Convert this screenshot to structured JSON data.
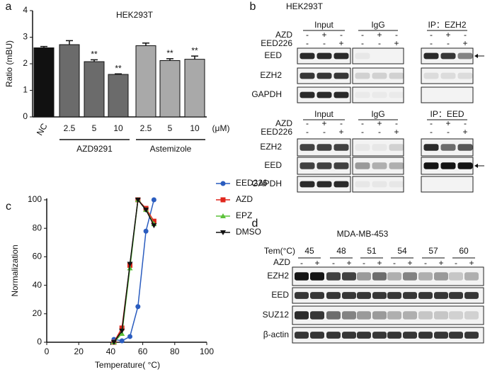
{
  "chart_data": [
    {
      "type": "bar",
      "panel_label": "a",
      "title": "HEK293T",
      "y_label": "Ratio (mBU)",
      "categories": [
        "NC",
        "2.5",
        "5",
        "10",
        "2.5",
        "5",
        "10"
      ],
      "values": [
        2.6,
        2.72,
        2.08,
        1.6,
        2.68,
        2.12,
        2.17
      ],
      "errors": [
        0.05,
        0.15,
        0.07,
        0.02,
        0.1,
        0.07,
        0.12
      ],
      "significance": [
        null,
        null,
        "**",
        "**",
        null,
        "**",
        "**"
      ],
      "colors": [
        "#111111",
        "#6b6b6b",
        "#6b6b6b",
        "#6b6b6b",
        "#a9a9a9",
        "#a9a9a9",
        "#a9a9a9"
      ],
      "groups": [
        "AZD9291",
        "Astemizole"
      ],
      "x_unit": "(μM)",
      "ylim": [
        0,
        4
      ],
      "yticks": [
        0,
        1,
        2,
        3,
        4
      ]
    },
    {
      "type": "line",
      "panel_label": "c",
      "x_label": "Temperature( °C)",
      "y_label": "Normalization",
      "x": [
        42,
        47,
        52,
        57,
        62,
        67
      ],
      "series": [
        {
          "name": "EED226",
          "color": "#2a5cbf",
          "marker": "circle",
          "values": [
            2,
            1,
            4,
            25,
            78,
            100
          ]
        },
        {
          "name": "AZD",
          "color": "#e0261c",
          "marker": "square",
          "values": [
            0,
            10,
            54,
            100,
            94,
            85
          ]
        },
        {
          "name": "EPZ",
          "color": "#5cc23a",
          "marker": "triangle-up",
          "values": [
            0,
            6,
            52,
            100,
            93,
            83
          ]
        },
        {
          "name": "DMSO",
          "color": "#111111",
          "marker": "triangle-down",
          "values": [
            0,
            8,
            55,
            100,
            93,
            82
          ]
        }
      ],
      "xlim": [
        0,
        100
      ],
      "xticks": [
        0,
        20,
        40,
        60,
        80,
        100
      ],
      "ylim": [
        0,
        100
      ],
      "yticks": [
        0,
        20,
        40,
        60,
        80,
        100
      ]
    }
  ],
  "blot_b": {
    "panel_label": "b",
    "title": "HEK293T",
    "sections": [
      {
        "groups": [
          "Input",
          "IgG",
          "IP：EZH2"
        ],
        "treatments": [
          {
            "label": "AZD",
            "signs": [
              "-",
              "+",
              "-"
            ]
          },
          {
            "label": "EED226",
            "signs": [
              "-",
              "-",
              "+"
            ]
          }
        ],
        "rows": [
          "EED",
          "EZH2",
          "GAPDH"
        ]
      },
      {
        "groups": [
          "Input",
          "IgG",
          "IP：EED"
        ],
        "treatments": [
          {
            "label": "AZD",
            "signs": [
              "-",
              "+",
              "-"
            ]
          },
          {
            "label": "EED226",
            "signs": [
              "-",
              "-",
              "+"
            ]
          }
        ],
        "rows": [
          "EZH2",
          "EED",
          "GAPDH"
        ]
      }
    ]
  },
  "blot_d": {
    "panel_label": "d",
    "title": "MDA-MB-453",
    "temperature_label": "Tem(°C)",
    "temperatures": [
      "45",
      "48",
      "51",
      "54",
      "57",
      "60"
    ],
    "treatment": {
      "label": "AZD",
      "signs": [
        "-",
        "+"
      ]
    },
    "rows": [
      "EZH2",
      "EED",
      "SUZ12",
      "β-actin"
    ]
  }
}
